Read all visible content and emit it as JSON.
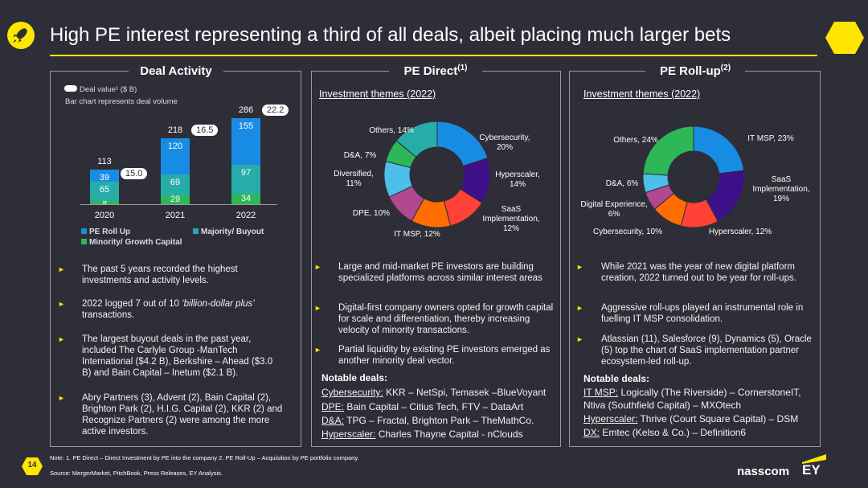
{
  "header": {
    "title": "High PE interest representing a third of all deals, albeit placing much larger bets"
  },
  "deal_activity": {
    "heading": "Deal Activity",
    "value_legend": "Deal value¹ ($ B)",
    "bar_note": "Bar chart represents deal volume",
    "legend": {
      "roll_up": "PE Roll Up",
      "buyout": "Majority/ Buyout",
      "minority": "Minority/ Growth Capital"
    },
    "colors": {
      "roll_up": "#188ce5",
      "buyout": "#27acaa",
      "minority": "#2db757"
    }
  },
  "chart_data": [
    {
      "type": "bar",
      "stacked": true,
      "categories": [
        "2020",
        "2021",
        "2022"
      ],
      "series": [
        {
          "name": "Minority/ Growth Capital",
          "values": [
            9,
            29,
            34
          ]
        },
        {
          "name": "Majority/ Buyout",
          "values": [
            65,
            69,
            97
          ]
        },
        {
          "name": "PE Roll Up",
          "values": [
            39,
            120,
            155
          ]
        }
      ],
      "totals": [
        113,
        218,
        286
      ],
      "deal_values": [
        "15.0",
        "16.5",
        "22.2"
      ],
      "legend_placement": "bottom-left"
    },
    {
      "type": "pie",
      "title": "Investment themes (2022)",
      "labels": [
        "Cybersecurity, 20%",
        "Hyperscaler, 14%",
        "SaaS Implementation, 12%",
        "IT MSP, 12%",
        "DPE, 10%",
        "Diversified, 11%",
        "D&A, 7%",
        "Others, 14%"
      ],
      "categories": [
        "Cybersecurity",
        "Hyperscaler",
        "SaaS Implementation",
        "IT MSP",
        "DPE",
        "Diversified",
        "D&A",
        "Others"
      ],
      "values": [
        20,
        14,
        12,
        12,
        10,
        11,
        7,
        14
      ],
      "colors": [
        "#188ce5",
        "#3d108a",
        "#ff4136",
        "#ff6d00",
        "#b14891",
        "#4ebeeb",
        "#2db757",
        "#27acaa"
      ]
    },
    {
      "type": "pie",
      "title": "Investment themes (2022)",
      "labels": [
        "IT MSP, 23%",
        "SaaS Implementation, 19%",
        "Hyperscaler, 12%",
        "Cybersecurity, 10%",
        "Digital Experience, 6%",
        "D&A, 6%",
        "Others, 24%"
      ],
      "categories": [
        "IT MSP",
        "SaaS Implementation",
        "Hyperscaler",
        "Cybersecurity",
        "Digital Experience",
        "D&A",
        "Others"
      ],
      "values": [
        23,
        19,
        12,
        10,
        6,
        6,
        24
      ],
      "colors": [
        "#188ce5",
        "#3d108a",
        "#ff4136",
        "#ff6d00",
        "#b14891",
        "#4ebeeb",
        "#2db757"
      ]
    }
  ],
  "left_bullets": [
    "The past 5 years recorded the highest investments and activity levels.",
    "2022 logged 7 out of 10 ‘billion-dollar plus’ transactions.",
    "The largest buyout deals in the past year, included The Carlyle Group -ManTech International ($4.2 B), Berkshire – Ahead ($3.0 B) and Bain Capital – Inetum ($2.1 B).",
    "Abry Partners (3), Advent (2), Bain Capital (2), Brighton Park (2), H.I.G. Capital (2), KKR (2) and Recognize Partners (2) were among the more active investors."
  ],
  "left_bullet_2_prefix": "2022 logged 7 out of 10 ",
  "left_bullet_2_italic": "‘billion-dollar plus’",
  "left_bullet_2_suffix": " transactions.",
  "pe_direct": {
    "heading": "PE Direct",
    "sup": "(1)",
    "themes_label": "Investment themes (2022)",
    "bullets": [
      "Large and mid-market PE investors are building specialized platforms across similar interest areas",
      "Digital-first company owners opted for growth capital for scale and differentiation, thereby increasing velocity of minority transactions.",
      "Partial liquidity by existing PE investors emerged as another minority deal vector."
    ],
    "notable_title": "Notable deals:",
    "deals": [
      {
        "tag": "Cybersecurity:",
        "text": " KKR – NetSpi, Temasek –BlueVoyant"
      },
      {
        "tag": "DPE:",
        "text": " Bain Capital – Citius Tech, FTV – DataArt"
      },
      {
        "tag": "D&A:",
        "text": " TPG – Fractal, Brighton Park – TheMathCo."
      },
      {
        "tag": "Hyperscaler:",
        "text": " Charles Thayne Capital - nClouds"
      }
    ]
  },
  "pe_rollup": {
    "heading": "PE Roll-up",
    "sup": "(2)",
    "themes_label": "Investment themes (2022)",
    "bullets": [
      "While 2021 was the year of new digital platform creation, 2022 turned out to be year for roll-ups.",
      "Aggressive roll-ups played an instrumental role in fuelling IT MSP consolidation.",
      "Atlassian (11), Salesforce (9), Dynamics (5), Oracle (5) top the chart of SaaS implementation partner ecosystem-led roll-up."
    ],
    "notable_title": "Notable deals:",
    "deals": [
      {
        "tag": "IT MSP:",
        "text": " Logically (The Riverside) – CornerstoneIT,"
      },
      {
        "tag": "",
        "text": "Ntiva (Southfield Capital) – MXOtech"
      },
      {
        "tag": "Hyperscaler:",
        "text": " Thrive (Court Square Capital) – DSM"
      },
      {
        "tag": "DX:",
        "text": " Emtec (Kelso & Co.) – Definition6"
      }
    ]
  },
  "footer": {
    "page_number": "14",
    "note": "Note: 1. PE  Direct – Direct Investment by PE into the company 2. PE Roll-Up – Acquisition by PE portfolio company.",
    "source": "Source: MergerMarket, PitchBook, Press Releases, EY Analysis.",
    "logo_nasscom": "nasscom",
    "logo_ey": "EY"
  }
}
